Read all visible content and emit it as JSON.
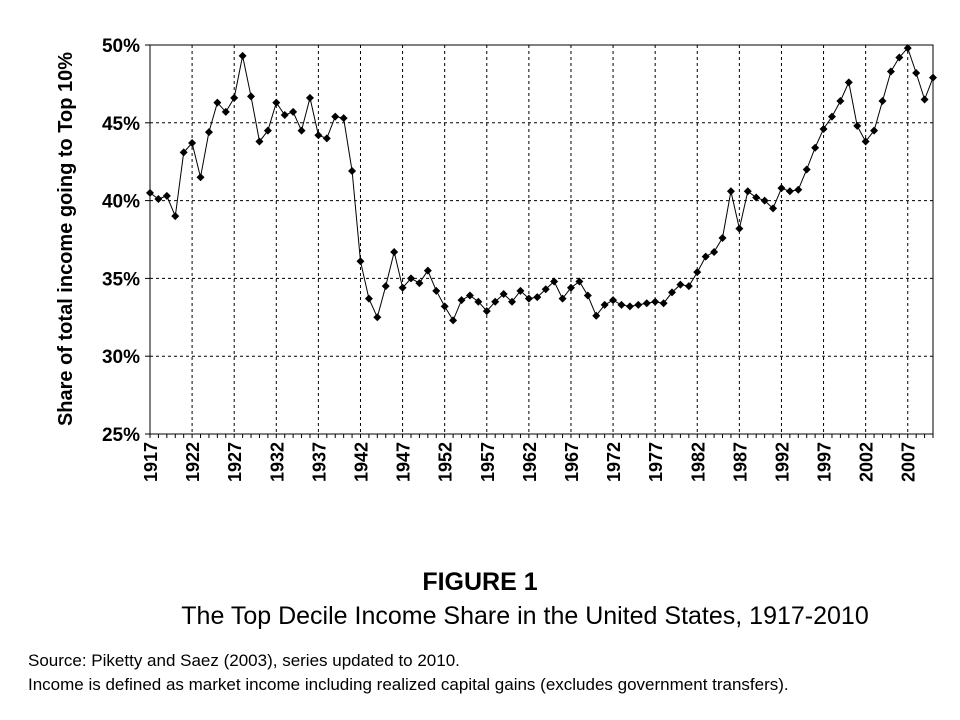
{
  "figure": {
    "label": "FIGURE 1",
    "subtitle": "The Top Decile Income Share in the United States, 1917-2010",
    "source_line": "Source: Piketty and Saez (2003), series updated to 2010.",
    "definition_line": "Income is defined as market income including realized capital gains (excludes government transfers)."
  },
  "chart_data": {
    "type": "line",
    "title": "",
    "xlabel": "",
    "ylabel": "Share of total income going to Top 10%",
    "ylim": [
      25,
      50
    ],
    "yticks": [
      "25%",
      "30%",
      "35%",
      "40%",
      "45%",
      "50%"
    ],
    "xlim": [
      1917,
      2010
    ],
    "xticks": [
      "1917",
      "1922",
      "1927",
      "1932",
      "1937",
      "1942",
      "1947",
      "1952",
      "1957",
      "1962",
      "1967",
      "1972",
      "1977",
      "1982",
      "1987",
      "1992",
      "1997",
      "2002",
      "2007"
    ],
    "grid": true,
    "marker": "diamond",
    "line_color": "#000000",
    "series": [
      {
        "x": [
          1917,
          1918,
          1919,
          1920,
          1921,
          1922,
          1923,
          1924,
          1925,
          1926,
          1927,
          1928,
          1929,
          1930,
          1931,
          1932,
          1933,
          1934,
          1935,
          1936,
          1937,
          1938,
          1939,
          1940,
          1941,
          1942,
          1943,
          1944,
          1945,
          1946,
          1947,
          1948,
          1949,
          1950,
          1951,
          1952,
          1953,
          1954,
          1955,
          1956,
          1957,
          1958,
          1959,
          1960,
          1961,
          1962,
          1963,
          1964,
          1965,
          1966,
          1967,
          1968,
          1969,
          1970,
          1971,
          1972,
          1973,
          1974,
          1975,
          1976,
          1977,
          1978,
          1979,
          1980,
          1981,
          1982,
          1983,
          1984,
          1985,
          1986,
          1987,
          1988,
          1989,
          1990,
          1991,
          1992,
          1993,
          1994,
          1995,
          1996,
          1997,
          1998,
          1999,
          2000,
          2001,
          2002,
          2003,
          2004,
          2005,
          2006,
          2007,
          2008,
          2009,
          2010
        ],
        "values": [
          40.5,
          40.1,
          40.3,
          39.0,
          43.1,
          43.7,
          41.5,
          44.4,
          46.3,
          45.7,
          46.6,
          49.3,
          46.7,
          43.8,
          44.5,
          46.3,
          45.5,
          45.7,
          44.5,
          46.6,
          44.2,
          44.0,
          45.4,
          45.3,
          41.9,
          36.1,
          33.7,
          32.5,
          34.5,
          36.7,
          34.4,
          35.0,
          34.7,
          35.5,
          34.2,
          33.2,
          32.3,
          33.6,
          33.9,
          33.5,
          32.9,
          33.5,
          34.0,
          33.5,
          34.2,
          33.7,
          33.8,
          34.3,
          34.8,
          33.7,
          34.4,
          34.8,
          33.9,
          32.6,
          33.3,
          33.6,
          33.3,
          33.2,
          33.3,
          33.4,
          33.5,
          33.4,
          34.1,
          34.6,
          34.5,
          35.4,
          36.4,
          36.7,
          37.6,
          40.6,
          38.2,
          40.6,
          40.2,
          40.0,
          39.5,
          40.8,
          40.6,
          40.7,
          42.0,
          43.4,
          44.6,
          45.4,
          46.4,
          47.6,
          44.8,
          43.8,
          44.5,
          46.4,
          48.3,
          49.2,
          49.8,
          48.2,
          46.5,
          47.9
        ]
      }
    ]
  }
}
